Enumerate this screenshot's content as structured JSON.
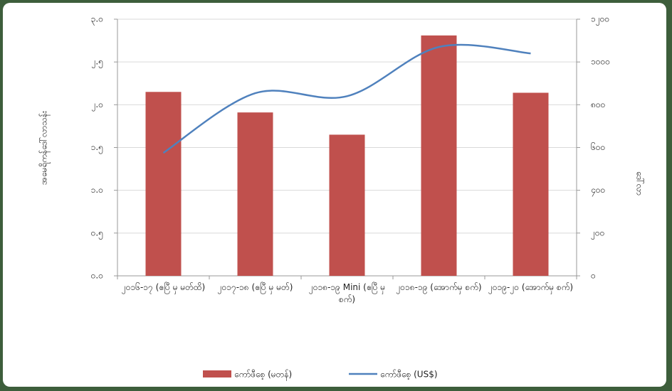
{
  "chart_data": {
    "type": "bar-line",
    "y_label": "အမေရိကန်ဒေါ်လာသန်း",
    "y2_label": "ဒေါ်လာ",
    "categories": [
      "၂၀၁၆-၁၇ (ဧပြီ မှ မတ်ထိ)",
      "၂၀၁၇-၁၈ (ဧပြီ မှ မတ်)",
      "၂၀၁၈-၁၉ Mini (ဧပြီ မှ စက်)",
      "၂၀၁၈-၁၉ (အောက်မှ စက်)",
      "၂၀၁၉-၂၀ (အောက်မှ စက်)"
    ],
    "series": [
      {
        "name": "ကော်ဖီစေ့ (မတန်)",
        "color": "#c0504d",
        "kind": "bar",
        "values": [
          2.15,
          1.91,
          1.65,
          2.81,
          2.14
        ]
      },
      {
        "name": "ကော်ဖီစေ့ (US$)",
        "color": "#4f81bd",
        "kind": "line",
        "axis": "y2",
        "values": [
          575,
          854,
          840,
          1070,
          1040
        ]
      }
    ],
    "ylim": [
      0,
      3
    ],
    "yticks": [
      {
        "value": 0,
        "label": "၀.၀"
      },
      {
        "value": 0.5,
        "label": "၀.၅"
      },
      {
        "value": 1,
        "label": "၁.၀"
      },
      {
        "value": 1.5,
        "label": "၁.၅"
      },
      {
        "value": 2,
        "label": "၂.၀"
      },
      {
        "value": 2.5,
        "label": "၂.၅"
      },
      {
        "value": 3,
        "label": "၃.၀"
      }
    ],
    "y2lim": [
      0,
      1200
    ],
    "y2ticks": [
      {
        "value": 0,
        "label": "၀"
      },
      {
        "value": 200,
        "label": "၂၀၀"
      },
      {
        "value": 400,
        "label": "၄၀၀"
      },
      {
        "value": 600,
        "label": "၆၀၀"
      },
      {
        "value": 800,
        "label": "၈၀၀"
      },
      {
        "value": 1000,
        "label": "၁၀၀၀"
      },
      {
        "value": 1200,
        "label": "၁၂၀၀"
      }
    ],
    "grid": true
  }
}
